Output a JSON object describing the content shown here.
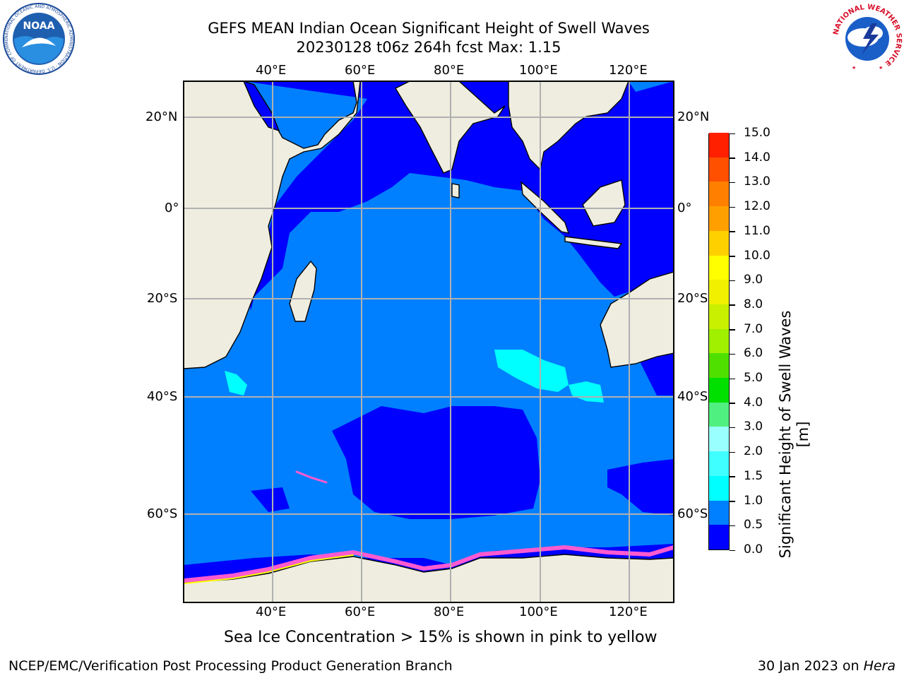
{
  "header": {
    "title_line1": "GEFS MEAN Indian Ocean Significant Height of Swell Waves",
    "title_line2": "20230128 t06z 264h fcst   Max: 1.15"
  },
  "logos": {
    "noaa_text": "NOAA",
    "noaa_ring_text": "NATIONAL OCEANIC AND ATMOSPHERIC ADMINISTRATION · U.S. DEPARTMENT OF COMMERCE",
    "nws_ring_text": "NATIONAL WEATHER SERVICE"
  },
  "map": {
    "lon_ticks": [
      "40°E",
      "60°E",
      "80°E",
      "100°E",
      "120°E"
    ],
    "lat_ticks_left": [
      "20°N",
      "0°",
      "20°S",
      "40°S",
      "60°S"
    ],
    "lat_ticks_right": [
      "20°N",
      "0°",
      "20°S",
      "40°S",
      "60°S"
    ],
    "extent": {
      "lon_min": 20,
      "lon_max": 130,
      "lat_min": -74,
      "lat_max": 28
    },
    "colors": {
      "land": "#eeede0",
      "ocean_low": "#0000ff",
      "ocean_mid": "#0080ff",
      "ocean_high": "#00ffff",
      "ice": "#ff5ad0"
    }
  },
  "colorbar": {
    "label": "Significant Height of Swell Waves [m]",
    "ticks": [
      "0.0",
      "0.5",
      "1.0",
      "1.5",
      "2.0",
      "3.0",
      "4.0",
      "5.0",
      "6.0",
      "7.0",
      "8.0",
      "9.0",
      "10.0",
      "11.0",
      "12.0",
      "13.0",
      "14.0",
      "15.0"
    ],
    "colors": [
      "#0000ff",
      "#0080ff",
      "#00ffff",
      "#40ffff",
      "#9affff",
      "#50f080",
      "#00e000",
      "#50e000",
      "#a0f000",
      "#c8f000",
      "#f0f000",
      "#ffff00",
      "#ffd000",
      "#ffa000",
      "#ff8000",
      "#ff5000",
      "#ff2000"
    ]
  },
  "note": "Sea Ice Concentration > 15% is shown in pink to yellow",
  "footer": {
    "left": "NCEP/EMC/Verification Post Processing Product Generation Branch",
    "right_prefix": "30 Jan 2023 on ",
    "right_system": "Hera"
  }
}
